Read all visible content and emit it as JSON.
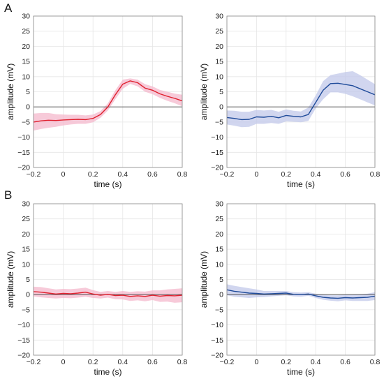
{
  "panel_letters": [
    "A",
    "B"
  ],
  "chart_data": [
    {
      "type": "line",
      "panel": "A",
      "xlabel": "time (s)",
      "ylabel": "amplitude (mV)",
      "xlim": [
        -0.2,
        0.8
      ],
      "ylim": [
        -20,
        30
      ],
      "xticks": [
        -0.2,
        0,
        0.2,
        0.4,
        0.6,
        0.8
      ],
      "yticks": [
        -20,
        -15,
        -10,
        -5,
        0,
        5,
        10,
        15,
        20,
        25,
        30
      ],
      "grid": true,
      "zero_line": true,
      "color": "#e0202e",
      "band_color": "#f4b8cc",
      "x": [
        -0.2,
        -0.15,
        -0.1,
        -0.05,
        0,
        0.05,
        0.1,
        0.15,
        0.2,
        0.25,
        0.3,
        0.35,
        0.4,
        0.45,
        0.5,
        0.55,
        0.6,
        0.65,
        0.7,
        0.75,
        0.8
      ],
      "mean": [
        -5,
        -4.6,
        -4.4,
        -4.5,
        -4.3,
        -4.2,
        -4.1,
        -4.2,
        -3.8,
        -2.5,
        0,
        4,
        7.5,
        8.6,
        8,
        6.2,
        5.5,
        4.3,
        3.5,
        2.8,
        2
      ],
      "upper": [
        -2.2,
        -2,
        -2,
        -2.4,
        -2.5,
        -2.6,
        -2.6,
        -2.8,
        -2.5,
        -1.4,
        1.2,
        5.5,
        9,
        9.4,
        9,
        7.5,
        6.8,
        5.6,
        5,
        4.4,
        4
      ],
      "lower": [
        -7.8,
        -7.3,
        -6.9,
        -6.6,
        -6.1,
        -5.8,
        -5.6,
        -5.6,
        -5.1,
        -3.6,
        -1.2,
        2.5,
        6,
        7.6,
        6.8,
        5,
        4.2,
        3,
        2,
        1.2,
        0.2
      ]
    },
    {
      "type": "line",
      "panel": "A",
      "xlabel": "time (s)",
      "ylabel": "amplitude (mV)",
      "xlim": [
        -0.2,
        0.8
      ],
      "ylim": [
        -20,
        30
      ],
      "xticks": [
        -0.2,
        0,
        0.2,
        0.4,
        0.6,
        0.8
      ],
      "yticks": [
        -20,
        -15,
        -10,
        -5,
        0,
        5,
        10,
        15,
        20,
        25,
        30
      ],
      "grid": true,
      "zero_line": true,
      "color": "#1f4b9a",
      "band_color": "#c2c8ea",
      "x": [
        -0.2,
        -0.15,
        -0.1,
        -0.05,
        0,
        0.05,
        0.1,
        0.15,
        0.2,
        0.25,
        0.3,
        0.35,
        0.4,
        0.45,
        0.5,
        0.55,
        0.6,
        0.65,
        0.7,
        0.75,
        0.8
      ],
      "mean": [
        -3.5,
        -3.8,
        -4.2,
        -4.1,
        -3.3,
        -3.4,
        -3.1,
        -3.6,
        -2.8,
        -3.1,
        -3.3,
        -2.5,
        1.5,
        5.5,
        7.7,
        7.8,
        7.4,
        7,
        6,
        5,
        4
      ],
      "upper": [
        -1.2,
        -1.3,
        -1.6,
        -1.6,
        -1,
        -1.2,
        -1,
        -1.6,
        -0.8,
        -1.3,
        -1.5,
        -0.2,
        3.8,
        8.5,
        10.5,
        11,
        11.5,
        11.8,
        10.5,
        9,
        7.5
      ],
      "lower": [
        -5.8,
        -6.2,
        -6.7,
        -6.6,
        -5.6,
        -5.6,
        -5.3,
        -5.6,
        -4.8,
        -4.9,
        -5.1,
        -4.6,
        -0.5,
        2.5,
        4.8,
        4.8,
        4.3,
        3.5,
        2.5,
        1.5,
        0.5
      ]
    },
    {
      "type": "line",
      "panel": "B",
      "xlabel": "time (s)",
      "ylabel": "amplitude (mV)",
      "xlim": [
        -0.2,
        0.8
      ],
      "ylim": [
        -20,
        30
      ],
      "xticks": [
        -0.2,
        0,
        0.2,
        0.4,
        0.6,
        0.8
      ],
      "yticks": [
        -20,
        -15,
        -10,
        -5,
        0,
        5,
        10,
        15,
        20,
        25,
        30
      ],
      "grid": true,
      "zero_line": true,
      "color": "#e0202e",
      "band_color": "#f4b8cc",
      "x": [
        -0.2,
        -0.15,
        -0.1,
        -0.05,
        0,
        0.05,
        0.1,
        0.15,
        0.2,
        0.25,
        0.3,
        0.35,
        0.4,
        0.45,
        0.5,
        0.55,
        0.6,
        0.65,
        0.7,
        0.75,
        0.8
      ],
      "mean": [
        1,
        0.8,
        0.5,
        0.2,
        0.4,
        0.3,
        0.5,
        0.8,
        0.2,
        -0.2,
        0.1,
        -0.3,
        -0.2,
        -0.6,
        -0.4,
        -0.6,
        -0.2,
        -0.5,
        -0.3,
        -0.4,
        -0.2
      ],
      "upper": [
        2.6,
        2.5,
        2.1,
        1.7,
        1.9,
        1.8,
        2,
        2.3,
        1.5,
        0.9,
        1.2,
        0.9,
        1.2,
        0.9,
        1.1,
        1,
        1.4,
        1.4,
        1.7,
        1.9,
        2.1
      ],
      "lower": [
        -0.6,
        -0.9,
        -1.1,
        -1.3,
        -1.1,
        -1.2,
        -1,
        -0.7,
        -1.1,
        -1.3,
        -1,
        -1.5,
        -1.6,
        -2.1,
        -1.9,
        -2.2,
        -1.8,
        -2.4,
        -2.3,
        -2.7,
        -2.5
      ]
    },
    {
      "type": "line",
      "panel": "B",
      "xlabel": "time (s)",
      "ylabel": "amplitude (mV)",
      "xlim": [
        -0.2,
        0.8
      ],
      "ylim": [
        -20,
        30
      ],
      "xticks": [
        -0.2,
        0,
        0.2,
        0.4,
        0.6,
        0.8
      ],
      "yticks": [
        -20,
        -15,
        -10,
        -5,
        0,
        5,
        10,
        15,
        20,
        25,
        30
      ],
      "grid": true,
      "zero_line": true,
      "color": "#1f4b9a",
      "band_color": "#c2c8ea",
      "x": [
        -0.2,
        -0.15,
        -0.1,
        -0.05,
        0,
        0.05,
        0.1,
        0.15,
        0.2,
        0.25,
        0.3,
        0.35,
        0.4,
        0.45,
        0.5,
        0.55,
        0.6,
        0.65,
        0.7,
        0.75,
        0.8
      ],
      "mean": [
        1.6,
        1.1,
        0.8,
        0.5,
        0.4,
        0.2,
        0.3,
        0.4,
        0.5,
        0.1,
        0,
        0.2,
        -0.4,
        -0.9,
        -1.1,
        -1.2,
        -1,
        -1.1,
        -1,
        -0.9,
        -0.5
      ],
      "upper": [
        3.4,
        2.9,
        2.5,
        2.1,
        1.7,
        1.2,
        1.2,
        1.2,
        1.2,
        0.8,
        0.7,
        0.8,
        0.3,
        -0.1,
        -0.2,
        -0.2,
        -0.1,
        -0.1,
        0.1,
        0.3,
        0.8
      ],
      "lower": [
        -0.2,
        -0.7,
        -0.9,
        -1.1,
        -0.9,
        -0.8,
        -0.6,
        -0.4,
        -0.2,
        -0.6,
        -0.7,
        -0.4,
        -1.1,
        -1.7,
        -2,
        -2.2,
        -1.9,
        -2.1,
        -2.1,
        -2.1,
        -1.8
      ]
    }
  ]
}
